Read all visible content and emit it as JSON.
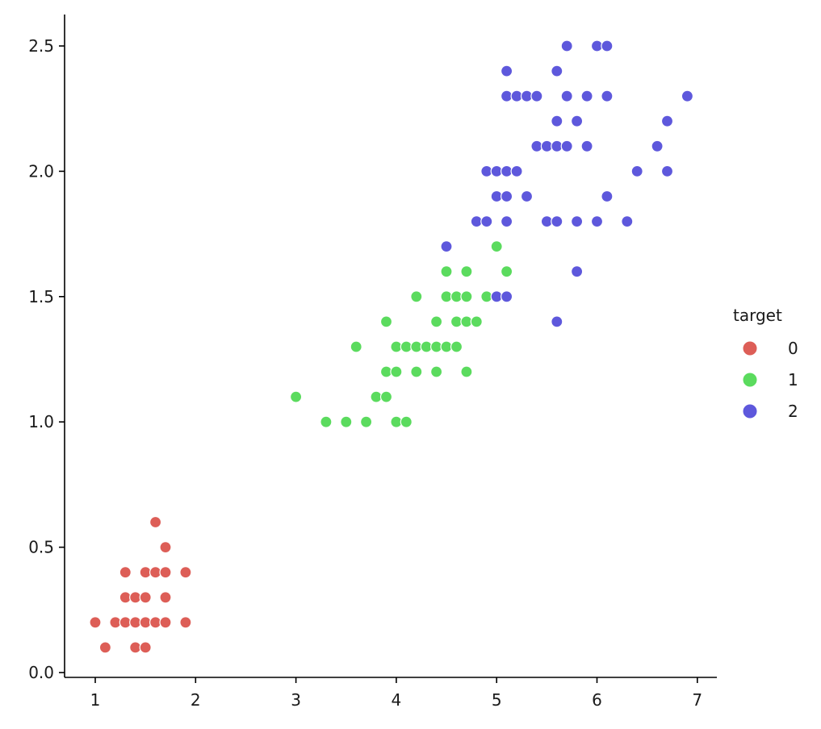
{
  "chart_data": {
    "type": "scatter",
    "title": "",
    "xlabel": "",
    "ylabel": "",
    "xlim": [
      0.7,
      7.2
    ],
    "ylim": [
      -0.03,
      2.62
    ],
    "xticks": [
      "1",
      "2",
      "3",
      "4",
      "5",
      "6",
      "7"
    ],
    "yticks": [
      "0.0",
      "0.5",
      "1.0",
      "1.5",
      "2.0",
      "2.5"
    ],
    "grid": false,
    "legend": {
      "title": "target",
      "placement": "right",
      "entries": [
        {
          "label": "0",
          "color": "#dd5e57"
        },
        {
          "label": "1",
          "color": "#5bdb5e"
        },
        {
          "label": "2",
          "color": "#5e58dc"
        }
      ]
    },
    "series": [
      {
        "name": "0",
        "color": "#dd5e57",
        "points": [
          [
            1.0,
            0.2
          ],
          [
            1.1,
            0.1
          ],
          [
            1.2,
            0.2
          ],
          [
            1.3,
            0.2
          ],
          [
            1.3,
            0.3
          ],
          [
            1.3,
            0.4
          ],
          [
            1.4,
            0.1
          ],
          [
            1.4,
            0.2
          ],
          [
            1.4,
            0.3
          ],
          [
            1.5,
            0.1
          ],
          [
            1.5,
            0.2
          ],
          [
            1.5,
            0.3
          ],
          [
            1.5,
            0.4
          ],
          [
            1.6,
            0.2
          ],
          [
            1.6,
            0.4
          ],
          [
            1.6,
            0.6
          ],
          [
            1.7,
            0.2
          ],
          [
            1.7,
            0.3
          ],
          [
            1.7,
            0.4
          ],
          [
            1.7,
            0.5
          ],
          [
            1.9,
            0.2
          ],
          [
            1.9,
            0.4
          ]
        ]
      },
      {
        "name": "1",
        "color": "#5bdb5e",
        "points": [
          [
            3.0,
            1.1
          ],
          [
            3.3,
            1.0
          ],
          [
            3.5,
            1.0
          ],
          [
            3.6,
            1.3
          ],
          [
            3.7,
            1.0
          ],
          [
            3.8,
            1.1
          ],
          [
            3.9,
            1.1
          ],
          [
            3.9,
            1.2
          ],
          [
            3.9,
            1.4
          ],
          [
            4.0,
            1.0
          ],
          [
            4.0,
            1.2
          ],
          [
            4.0,
            1.3
          ],
          [
            4.1,
            1.0
          ],
          [
            4.1,
            1.3
          ],
          [
            4.2,
            1.2
          ],
          [
            4.2,
            1.3
          ],
          [
            4.2,
            1.5
          ],
          [
            4.3,
            1.3
          ],
          [
            4.4,
            1.2
          ],
          [
            4.4,
            1.3
          ],
          [
            4.4,
            1.4
          ],
          [
            4.5,
            1.3
          ],
          [
            4.5,
            1.5
          ],
          [
            4.5,
            1.6
          ],
          [
            4.6,
            1.3
          ],
          [
            4.6,
            1.4
          ],
          [
            4.6,
            1.5
          ],
          [
            4.7,
            1.2
          ],
          [
            4.7,
            1.4
          ],
          [
            4.7,
            1.5
          ],
          [
            4.7,
            1.6
          ],
          [
            4.8,
            1.4
          ],
          [
            4.9,
            1.5
          ],
          [
            5.0,
            1.7
          ],
          [
            5.1,
            1.6
          ]
        ]
      },
      {
        "name": "2",
        "color": "#5e58dc",
        "points": [
          [
            4.5,
            1.7
          ],
          [
            4.8,
            1.8
          ],
          [
            4.9,
            1.8
          ],
          [
            4.9,
            2.0
          ],
          [
            5.0,
            1.5
          ],
          [
            5.0,
            1.9
          ],
          [
            5.0,
            2.0
          ],
          [
            5.1,
            1.5
          ],
          [
            5.1,
            1.8
          ],
          [
            5.1,
            1.9
          ],
          [
            5.1,
            2.0
          ],
          [
            5.1,
            2.3
          ],
          [
            5.1,
            2.4
          ],
          [
            5.2,
            2.0
          ],
          [
            5.2,
            2.3
          ],
          [
            5.3,
            1.9
          ],
          [
            5.3,
            2.3
          ],
          [
            5.4,
            2.1
          ],
          [
            5.4,
            2.3
          ],
          [
            5.5,
            1.8
          ],
          [
            5.5,
            2.1
          ],
          [
            5.6,
            1.4
          ],
          [
            5.6,
            1.8
          ],
          [
            5.6,
            2.1
          ],
          [
            5.6,
            2.2
          ],
          [
            5.6,
            2.4
          ],
          [
            5.7,
            2.1
          ],
          [
            5.7,
            2.3
          ],
          [
            5.7,
            2.5
          ],
          [
            5.8,
            1.6
          ],
          [
            5.8,
            1.8
          ],
          [
            5.8,
            2.2
          ],
          [
            5.9,
            2.1
          ],
          [
            5.9,
            2.3
          ],
          [
            6.0,
            1.8
          ],
          [
            6.0,
            2.5
          ],
          [
            6.1,
            1.9
          ],
          [
            6.1,
            2.3
          ],
          [
            6.1,
            2.5
          ],
          [
            6.3,
            1.8
          ],
          [
            6.4,
            2.0
          ],
          [
            6.6,
            2.1
          ],
          [
            6.7,
            2.0
          ],
          [
            6.7,
            2.2
          ],
          [
            6.9,
            2.3
          ]
        ]
      }
    ]
  }
}
